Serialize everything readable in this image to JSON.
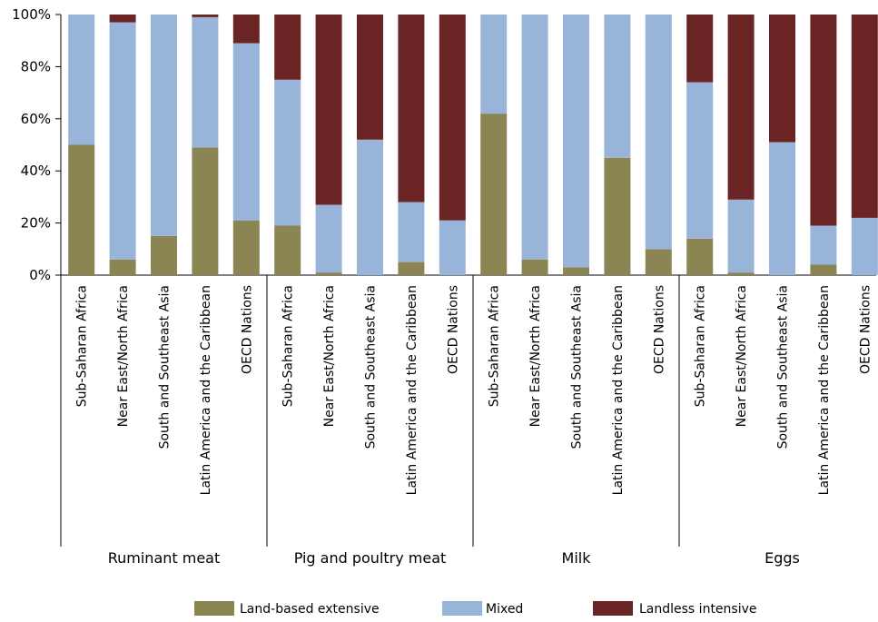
{
  "chart_data": {
    "type": "bar",
    "stacked": true,
    "percent": true,
    "ylim": [
      0,
      100
    ],
    "yticks": [
      "0%",
      "20%",
      "40%",
      "60%",
      "80%",
      "100%"
    ],
    "groups": [
      "Ruminant meat",
      "Pig and poultry meat",
      "Milk",
      "Eggs"
    ],
    "categories": [
      "Sub-Saharan Africa",
      "Near East/North Africa",
      "South and Southeast Asia",
      "Latin America and the Caribbean",
      "OECD Nations"
    ],
    "series": [
      {
        "name": "Land-based extensive",
        "color": "#8b8554",
        "values": [
          [
            50,
            6,
            15,
            49,
            21
          ],
          [
            19,
            1,
            0,
            5,
            0
          ],
          [
            62,
            6,
            3,
            45,
            10
          ],
          [
            14,
            1,
            0,
            4,
            0
          ]
        ]
      },
      {
        "name": "Mixed",
        "color": "#99b4d9",
        "values": [
          [
            50,
            91,
            85,
            50,
            68
          ],
          [
            56,
            26,
            52,
            23,
            21
          ],
          [
            38,
            94,
            97,
            55,
            90
          ],
          [
            60,
            28,
            51,
            15,
            22
          ]
        ]
      },
      {
        "name": "Landless intensive",
        "color": "#6b2424",
        "values": [
          [
            0,
            3,
            0,
            1,
            11
          ],
          [
            25,
            73,
            48,
            72,
            79
          ],
          [
            0,
            0,
            0,
            0,
            0
          ],
          [
            26,
            71,
            49,
            81,
            78
          ]
        ]
      }
    ],
    "legend_position": "bottom",
    "grid": false
  }
}
